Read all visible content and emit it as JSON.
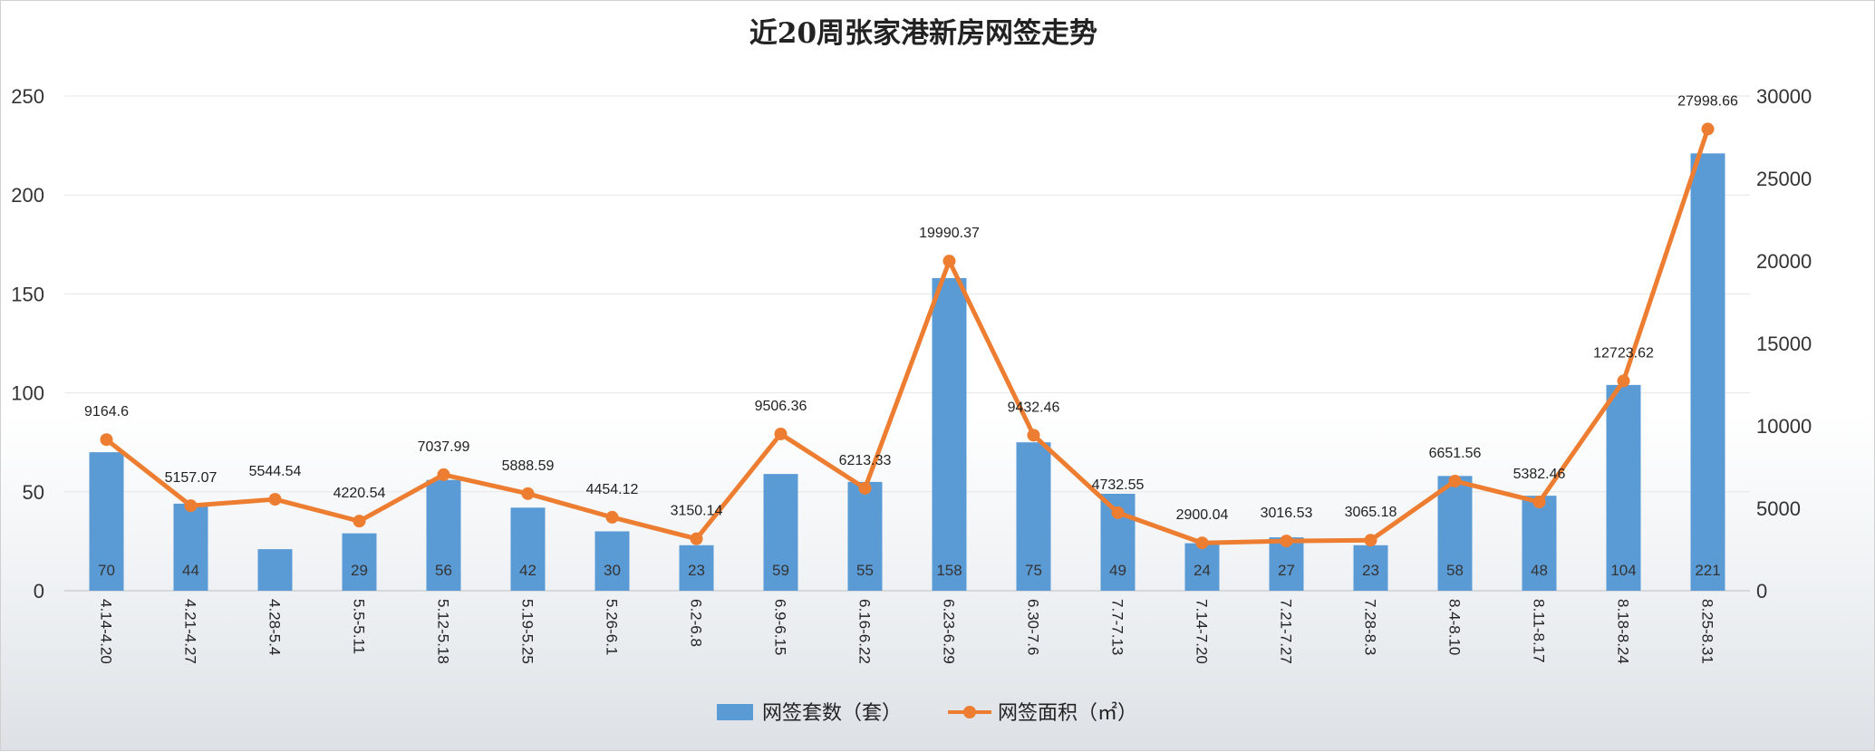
{
  "chart_data": {
    "type": "bar",
    "title": "近20周张家港新房网签走势",
    "categories": [
      "4.14-4.20",
      "4.21-4.27",
      "4.28-5.4",
      "5.5-5.11",
      "5.12-5.18",
      "5.19-5.25",
      "5.26-6.1",
      "6.2-6.8",
      "6.9-6.15",
      "6.16-6.22",
      "6.23-6.29",
      "6.30-7.6",
      "7.7-7.13",
      "7.14-7.20",
      "7.21-7.27",
      "7.28-8.3",
      "8.4-8.10",
      "8.11-8.17",
      "8.18-8.24",
      "8.25-8.31"
    ],
    "series": [
      {
        "name": "网签套数（套）",
        "type": "bar",
        "axis": "left",
        "color": "#5b9bd5",
        "values": [
          70,
          44,
          21,
          29,
          56,
          42,
          30,
          23,
          59,
          55,
          158,
          75,
          49,
          24,
          27,
          23,
          58,
          48,
          104,
          221
        ],
        "labels": [
          "70",
          "44",
          "",
          "29",
          "56",
          "42",
          "30",
          "23",
          "59",
          "55",
          "158",
          "75",
          "49",
          "24",
          "27",
          "23",
          "58",
          "48",
          "104",
          "221"
        ]
      },
      {
        "name": "网签面积（㎡）",
        "type": "line",
        "axis": "right",
        "color": "#ed7d31",
        "values": [
          9164.6,
          5157.07,
          5544.54,
          4220.54,
          7037.99,
          5888.59,
          4454.12,
          3150.14,
          9506.36,
          6213.33,
          19990.37,
          9432.46,
          4732.55,
          2900.04,
          3016.53,
          3065.18,
          6651.56,
          5382.46,
          12723.62,
          27998.66
        ],
        "labels": [
          "9164.6",
          "5157.07",
          "5544.54",
          "4220.54",
          "7037.99",
          "5888.59",
          "4454.12",
          "3150.14",
          "9506.36",
          "6213.33",
          "19990.37",
          "9432.46",
          "4732.55",
          "2900.04",
          "3016.53",
          "3065.18",
          "6651.56",
          "5382.46",
          "12723.62",
          "27998.66"
        ]
      }
    ],
    "y_left": {
      "min": 0,
      "max": 250,
      "ticks": [
        0,
        50,
        100,
        150,
        200,
        250
      ]
    },
    "y_right": {
      "min": 0,
      "max": 30000,
      "ticks": [
        0,
        5000,
        10000,
        15000,
        20000,
        25000,
        30000
      ]
    },
    "grid": true,
    "legend_position": "bottom"
  }
}
